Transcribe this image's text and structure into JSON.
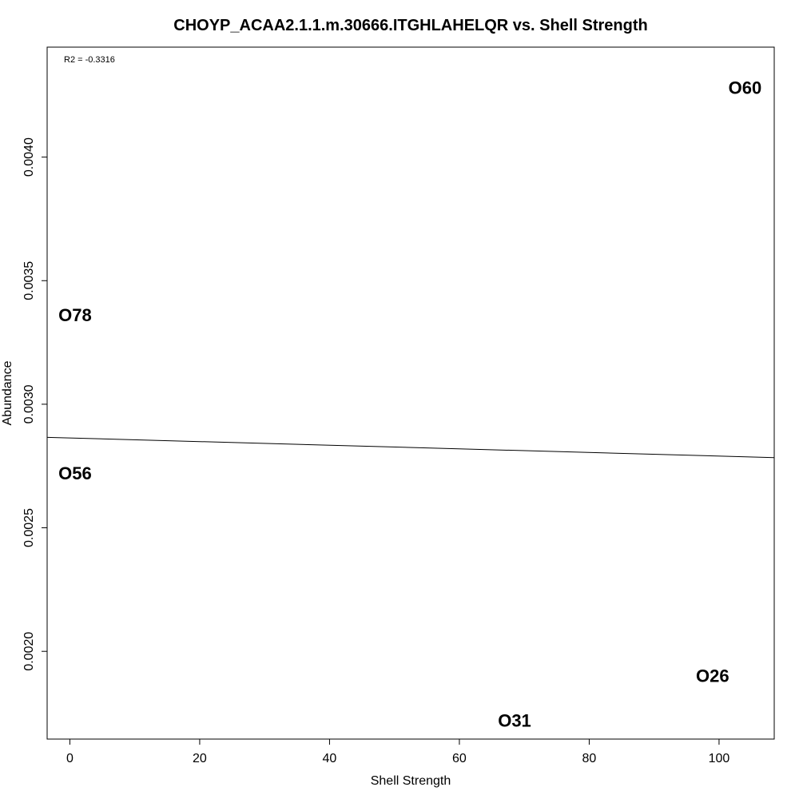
{
  "chart_data": {
    "type": "scatter",
    "title": "CHOYP_ACAA2.1.1.m.30666.ITGHLAHELQR vs. Shell Strength",
    "xlabel": "Shell Strength",
    "ylabel": "Abundance",
    "annotation": "R2 = -0.3316",
    "xlim": [
      -3.5,
      108.5
    ],
    "ylim": [
      0.001645,
      0.004445
    ],
    "x_ticks": [
      0,
      20,
      40,
      60,
      80,
      100
    ],
    "x_tick_labels": [
      "0",
      "20",
      "40",
      "60",
      "80",
      "100"
    ],
    "y_ticks": [
      0.002,
      0.0025,
      0.003,
      0.0035,
      0.004
    ],
    "y_tick_labels": [
      "0.0020",
      "0.0025",
      "0.0030",
      "0.0035",
      "0.0040"
    ],
    "points": [
      {
        "label": "O60",
        "x": 104,
        "y": 0.00428
      },
      {
        "label": "O78",
        "x": 0.8,
        "y": 0.00336
      },
      {
        "label": "O56",
        "x": 0.8,
        "y": 0.00272
      },
      {
        "label": "O26",
        "x": 99,
        "y": 0.0019
      },
      {
        "label": "O31",
        "x": 68.5,
        "y": 0.00172
      }
    ],
    "regression_line": {
      "x": [
        -3.5,
        108.5
      ],
      "y": [
        0.002866,
        0.002784
      ]
    },
    "grid": false,
    "legend": "none"
  }
}
